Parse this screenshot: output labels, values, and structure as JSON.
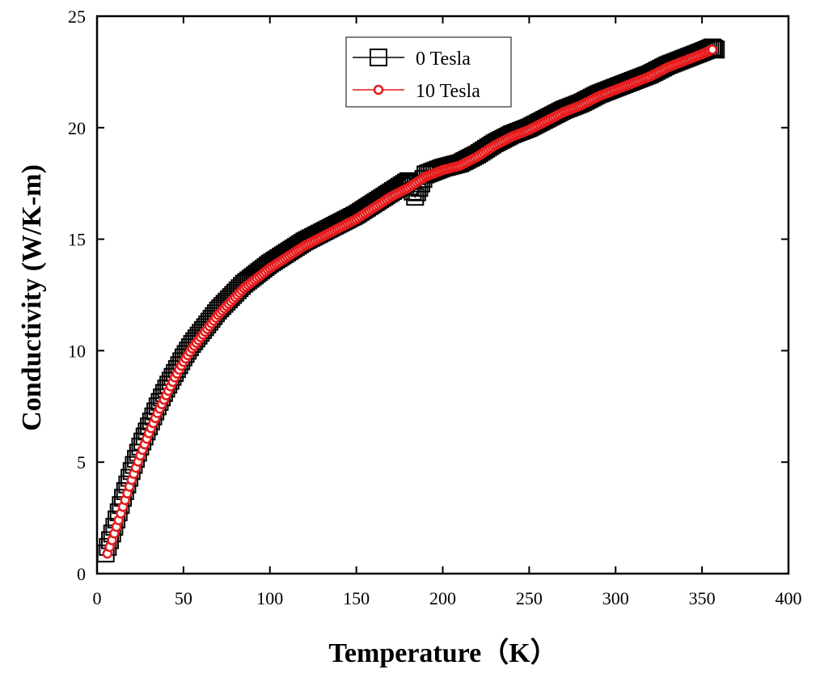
{
  "chart_data": {
    "type": "scatter",
    "title": "",
    "xlabel": "Temperature（K）",
    "ylabel": "Conductivity (W/K-m)",
    "xlim": [
      0,
      400
    ],
    "ylim": [
      0,
      25
    ],
    "xticks": [
      0,
      50,
      100,
      150,
      200,
      250,
      300,
      350,
      400
    ],
    "yticks": [
      0,
      5,
      10,
      15,
      20,
      25
    ],
    "grid": false,
    "legend_position": "top-center",
    "series": [
      {
        "name": "0 Tesla",
        "color": "#000000",
        "marker": "square-open",
        "x": [
          5,
          10,
          15,
          20,
          25,
          30,
          35,
          40,
          45,
          50,
          55,
          60,
          65,
          70,
          75,
          80,
          85,
          90,
          95,
          100,
          110,
          120,
          130,
          140,
          150,
          160,
          170,
          180,
          184,
          190,
          200,
          210,
          220,
          230,
          240,
          250,
          260,
          270,
          280,
          290,
          300,
          310,
          320,
          330,
          340,
          350,
          356,
          358
        ],
        "y": [
          0.9,
          2.1,
          3.4,
          4.6,
          5.7,
          6.6,
          7.5,
          8.3,
          9.0,
          9.7,
          10.3,
          10.8,
          11.3,
          11.8,
          12.2,
          12.6,
          13.0,
          13.3,
          13.6,
          13.9,
          14.4,
          14.9,
          15.3,
          15.7,
          16.1,
          16.6,
          17.1,
          17.6,
          16.9,
          17.9,
          18.2,
          18.4,
          18.8,
          19.3,
          19.7,
          20.0,
          20.4,
          20.8,
          21.1,
          21.5,
          21.8,
          22.1,
          22.4,
          22.8,
          23.1,
          23.4,
          23.6,
          23.5
        ]
      },
      {
        "name": "10 Tesla",
        "color": "#e41a1c",
        "marker": "circle-open",
        "x": [
          6,
          10,
          15,
          20,
          25,
          30,
          35,
          40,
          45,
          50,
          55,
          60,
          65,
          70,
          75,
          80,
          85,
          90,
          95,
          100,
          110,
          120,
          130,
          140,
          150,
          160,
          170,
          180,
          190,
          200,
          210,
          220,
          230,
          240,
          250,
          260,
          270,
          280,
          290,
          300,
          310,
          320,
          330,
          340,
          350,
          356
        ],
        "y": [
          0.9,
          1.8,
          3.0,
          4.2,
          5.3,
          6.3,
          7.2,
          8.0,
          8.8,
          9.5,
          10.1,
          10.6,
          11.1,
          11.6,
          12.0,
          12.4,
          12.8,
          13.1,
          13.4,
          13.7,
          14.2,
          14.7,
          15.1,
          15.5,
          15.9,
          16.4,
          16.9,
          17.3,
          17.8,
          18.1,
          18.3,
          18.7,
          19.2,
          19.6,
          19.9,
          20.3,
          20.7,
          21.0,
          21.4,
          21.7,
          22.0,
          22.3,
          22.7,
          23.0,
          23.3,
          23.5
        ]
      }
    ]
  }
}
